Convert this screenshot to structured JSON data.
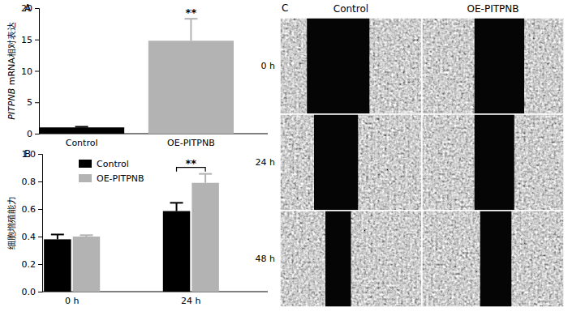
{
  "chart_data": [
    {
      "type": "bar",
      "title": "A",
      "y_label": "PITPNB mRNA相对表达",
      "categories": [
        "Control",
        "OE-PITPNB"
      ],
      "values": [
        1,
        14.8
      ],
      "errors": [
        0.1,
        3.5
      ],
      "colors": [
        "#000000",
        "#b3b3b3"
      ],
      "ylim": [
        0,
        20
      ],
      "yticks": [
        0,
        5,
        10,
        15,
        20
      ],
      "annotations": [
        {
          "text": "**",
          "category": "OE-PITPNB"
        }
      ]
    },
    {
      "type": "bar",
      "title": "B",
      "y_label": "细胞增殖能力",
      "categories": [
        "0 h",
        "24 h"
      ],
      "series": [
        {
          "name": "Control",
          "color": "#000000",
          "values": [
            0.38,
            0.585
          ],
          "errors": [
            0.035,
            0.06
          ]
        },
        {
          "name": "OE-PITPNB",
          "color": "#b3b3b3",
          "values": [
            0.4,
            0.79
          ],
          "errors": [
            0.01,
            0.065
          ]
        }
      ],
      "ylim": [
        0,
        1
      ],
      "yticks": [
        {
          "value": 0,
          "label": "0.0"
        },
        0.2,
        0.4,
        0.6,
        0.8,
        {
          "value": 1,
          "label": "1.0"
        }
      ],
      "legend": "top-left",
      "annotations": [
        {
          "text": "**",
          "category": "24 h",
          "between": [
            "Control",
            "OE-PITPNB"
          ]
        }
      ]
    }
  ],
  "image_panel": {
    "title": "C",
    "columns": [
      "Control",
      "OE-PITPNB"
    ],
    "rows": [
      "0 h",
      "24 h",
      "48 h"
    ]
  }
}
